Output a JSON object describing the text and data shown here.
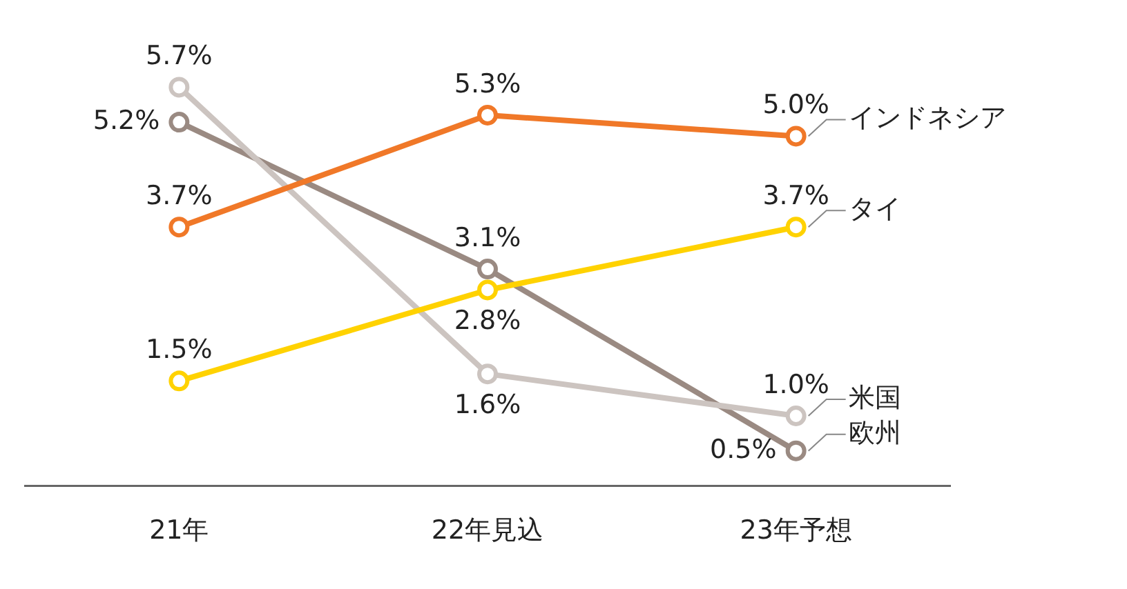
{
  "chart_data": {
    "type": "line",
    "categories": [
      "21年",
      "22年見込",
      "23年予想"
    ],
    "marker": "circle",
    "legend": false,
    "grid": false,
    "series": [
      {
        "name": "インドネシア",
        "color": "#f07828",
        "values": [
          3.7,
          5.3,
          5.0
        ],
        "value_labels": [
          "3.7%",
          "5.3%",
          "5.0%"
        ]
      },
      {
        "name": "タイ",
        "color": "#ffd200",
        "values": [
          1.5,
          2.8,
          3.7
        ],
        "value_labels": [
          "1.5%",
          "2.8%",
          "3.7%"
        ]
      },
      {
        "name": "米国",
        "color": "#ccc4c0",
        "values": [
          5.7,
          1.6,
          1.0
        ],
        "value_labels": [
          "5.7%",
          "1.6%",
          "1.0%"
        ]
      },
      {
        "name": "欧州",
        "color": "#9a8a82",
        "values": [
          5.2,
          3.1,
          0.5
        ],
        "value_labels": [
          "5.2%",
          "3.1%",
          "0.5%"
        ]
      }
    ]
  }
}
